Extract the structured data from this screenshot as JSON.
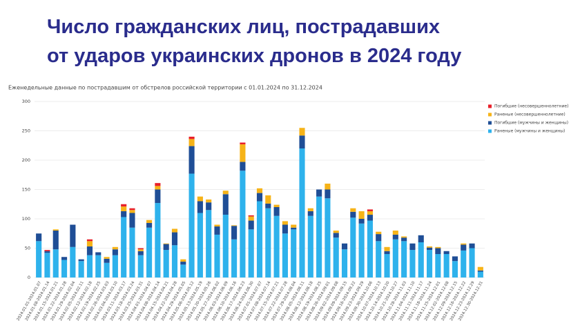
{
  "chart_data": {
    "type": "stacked-bar",
    "title": "Число гражданских лиц, пострадавших\nот ударов украинских дронов в 2024 году",
    "subtitle": "Еженедельные данные по пострадавшим от обстрелов российской территории с 01.01.2024 по 31.12.2024",
    "categories": [
      "2024.01.01-2024.01.07",
      "2024.01.08-2024.01.14",
      "2024.01.15-2024.01.21",
      "2024.01.22-2024.01.28",
      "2024.01.29-2024.02.04",
      "2024.02.05-2024.02.11",
      "2024.02.12-2024.02.18",
      "2024.02.19-2024.02.25",
      "2024.02.26-2024.03.03",
      "2024.03.04-2024.03.10",
      "2024.03.11-2024.03.17",
      "2024.03.18-2024.03.24",
      "2024.03.25-2024.03.31",
      "2024.04.01-2024.04.07",
      "2024.04.08-2024.04.14",
      "2024.04.15-2024.04.21",
      "2024.04.22-2024.04.28",
      "2024.04.29-2024.05.05",
      "2024.05.06-2024.05.12",
      "2024.05.13-2024.05.19",
      "2024.05.20-2024.05.26",
      "2024.05.27-2024.06.02",
      "2024.06.03-2024.06.09",
      "2024.06.10-2024.06.16",
      "2024.06.17-2024.06.23",
      "2024.06.24-2024.06.30",
      "2024.07.01-2024.07.07",
      "2024.07.08-2024.07.14",
      "2024.07.15-2024.07.21",
      "2024.07.22-2024.07.28",
      "2024.07.29-2024.08.04",
      "2024.08.05-2024.08.11",
      "2024.08.12-2024.08.18",
      "2024.08.19-2024.08.25",
      "2024.08.26-2024.09.01",
      "2024.09.02-2024.09.08",
      "2024.09.09-2024.09.15",
      "2024.09.16-2024.09.22",
      "2024.09.23-2024.09.29",
      "2024.09.30-2024.10.06",
      "2024.10.07-2024.10.13",
      "2024.10.14-2024.10.20",
      "2024.10.21-2024.10.27",
      "2024.10.28-2024.11.03",
      "2024.11.04-2024.11.10",
      "2024.11.11-2024.11.17",
      "2024.11.18-2024.11.24",
      "2024.11.25-2024.12.01",
      "2024.12.02-2024.12.08",
      "2024.12.09-2024.12.15",
      "2024.12.16-2024.12.22",
      "2024.12.23-2024.12.29",
      "2024.12.30-2024.12.31"
    ],
    "series": [
      {
        "name": "Погибшие (несовершеннолетние)",
        "color": "#e8202a",
        "values": [
          0,
          2,
          0,
          0,
          0,
          0,
          3,
          0,
          0,
          0,
          4,
          3,
          2,
          0,
          5,
          0,
          0,
          0,
          4,
          0,
          0,
          0,
          0,
          0,
          3,
          2,
          0,
          0,
          0,
          0,
          0,
          0,
          0,
          0,
          0,
          0,
          0,
          0,
          0,
          3,
          0,
          0,
          0,
          0,
          0,
          0,
          0,
          0,
          0,
          0,
          0,
          0,
          0
        ]
      },
      {
        "name": "Раненые (несовершеннолетние)",
        "color": "#f6b318",
        "values": [
          0,
          0,
          2,
          0,
          0,
          0,
          9,
          0,
          3,
          4,
          8,
          5,
          3,
          5,
          6,
          1,
          6,
          4,
          12,
          8,
          5,
          3,
          6,
          1,
          30,
          7,
          8,
          14,
          4,
          6,
          5,
          13,
          5,
          0,
          10,
          4,
          0,
          6,
          13,
          6,
          4,
          7,
          7,
          2,
          0,
          0,
          2,
          2,
          0,
          0,
          2,
          0,
          6
        ]
      },
      {
        "name": "Погибшие (мужчины и женщины)",
        "color": "#1f4e96",
        "values": [
          13,
          3,
          32,
          5,
          38,
          3,
          15,
          5,
          7,
          10,
          10,
          25,
          7,
          8,
          23,
          10,
          22,
          5,
          47,
          20,
          13,
          14,
          35,
          23,
          15,
          15,
          14,
          8,
          15,
          15,
          3,
          22,
          8,
          12,
          15,
          8,
          10,
          10,
          8,
          10,
          12,
          5,
          8,
          6,
          11,
          12,
          4,
          10,
          5,
          8,
          10,
          8,
          2
        ]
      },
      {
        "name": "Раненые (мужчины и женщины)",
        "color": "#2eb2ec",
        "values": [
          62,
          42,
          48,
          30,
          52,
          28,
          38,
          38,
          25,
          38,
          103,
          85,
          38,
          85,
          127,
          47,
          55,
          22,
          177,
          110,
          115,
          73,
          107,
          65,
          182,
          82,
          130,
          118,
          105,
          75,
          82,
          220,
          105,
          138,
          135,
          68,
          48,
          102,
          92,
          97,
          62,
          40,
          65,
          62,
          47,
          60,
          47,
          40,
          40,
          28,
          46,
          50,
          10
        ]
      }
    ],
    "ylim": [
      0,
      300
    ],
    "yticks": [
      0,
      50,
      100,
      150,
      200,
      250,
      300
    ],
    "grid": true,
    "legend": "top-right"
  }
}
